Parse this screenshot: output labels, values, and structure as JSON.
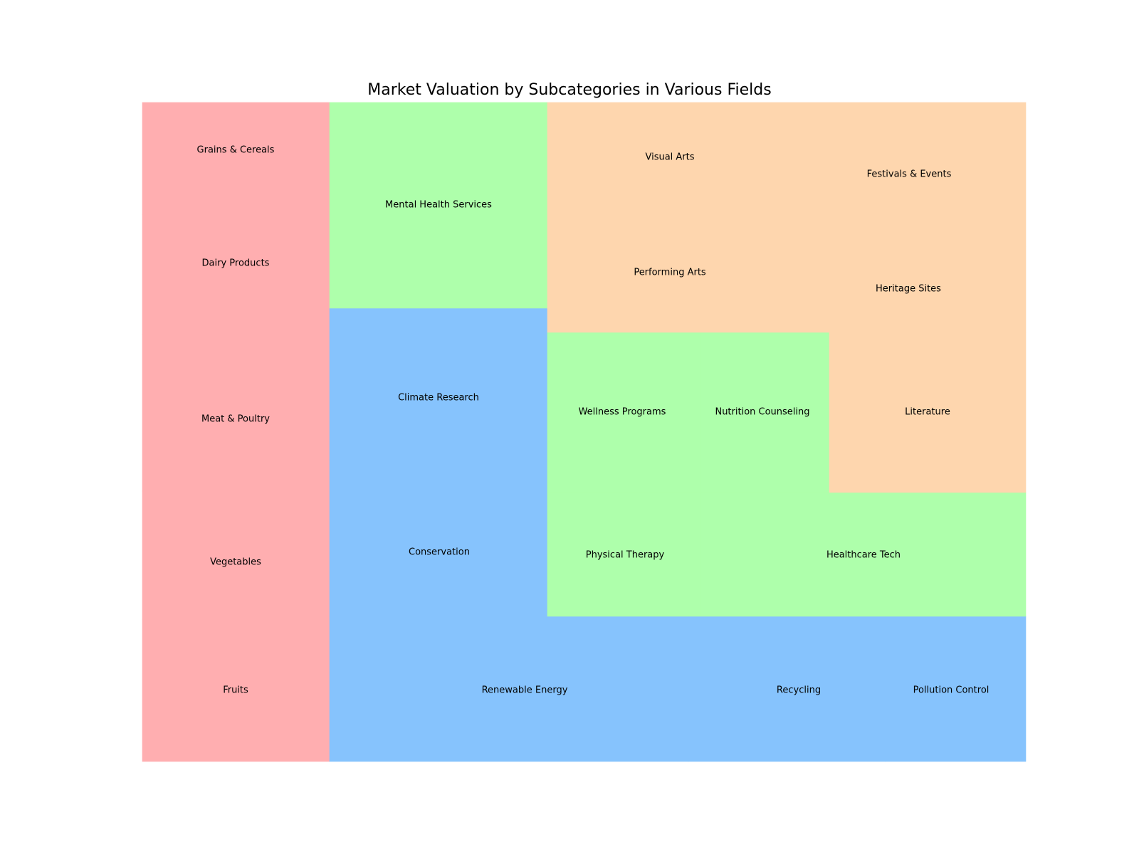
{
  "chart_data": {
    "type": "treemap",
    "title": "Market Valuation by Subcategories in Various Fields",
    "colors": {
      "food": "#ffaeb0",
      "environment": "#86c3fd",
      "health": "#aeffab",
      "culture": "#fed6ae"
    },
    "cells": [
      {
        "label": "Fruits",
        "group": "food"
      },
      {
        "label": "Vegetables",
        "group": "food"
      },
      {
        "label": "Meat & Poultry",
        "group": "food"
      },
      {
        "label": "Dairy Products",
        "group": "food"
      },
      {
        "label": "Grains & Cereals",
        "group": "food"
      },
      {
        "label": "Renewable Energy",
        "group": "environment"
      },
      {
        "label": "Conservation",
        "group": "environment"
      },
      {
        "label": "Climate Research",
        "group": "environment"
      },
      {
        "label": "Recycling",
        "group": "environment"
      },
      {
        "label": "Pollution Control",
        "group": "environment"
      },
      {
        "label": "Mental Health Services",
        "group": "health"
      },
      {
        "label": "Physical Therapy",
        "group": "health"
      },
      {
        "label": "Healthcare Tech",
        "group": "health"
      },
      {
        "label": "Wellness Programs",
        "group": "health"
      },
      {
        "label": "Nutrition Counseling",
        "group": "health"
      },
      {
        "label": "Visual Arts",
        "group": "culture"
      },
      {
        "label": "Performing Arts",
        "group": "culture"
      },
      {
        "label": "Festivals & Events",
        "group": "culture"
      },
      {
        "label": "Heritage Sites",
        "group": "culture"
      },
      {
        "label": "Literature",
        "group": "culture"
      }
    ]
  }
}
